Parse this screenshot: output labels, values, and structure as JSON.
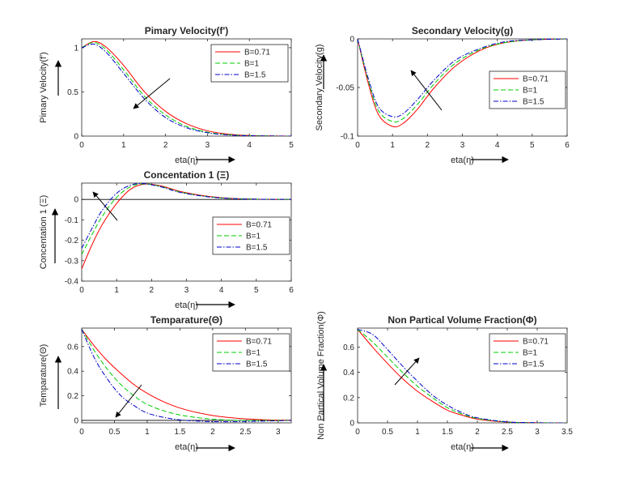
{
  "chart_data": [
    {
      "type": "line",
      "title": "Pimary Velocity(f')",
      "xlabel": "eta(η)",
      "ylabel": "Pimary Velocity(f')",
      "xlim": [
        0,
        5
      ],
      "ylim": [
        0,
        1.1
      ],
      "xticks": [
        "0",
        "1",
        "2",
        "3",
        "4",
        "5"
      ],
      "yticks": [
        "0",
        "0.5",
        "1"
      ],
      "legend_position": "top-right",
      "arrow_direction": "down-left",
      "series": [
        {
          "name": "B=0.71",
          "color": "#ff0000",
          "dash": "solid",
          "x": [
            0,
            0.3,
            0.6,
            1.0,
            1.5,
            2.0,
            2.5,
            3.0,
            3.5,
            4.0,
            4.5,
            5.0
          ],
          "y": [
            1.0,
            1.07,
            1.0,
            0.8,
            0.5,
            0.28,
            0.14,
            0.06,
            0.022,
            0.007,
            0.002,
            0
          ]
        },
        {
          "name": "B=1",
          "color": "#00cc00",
          "dash": "dashed",
          "x": [
            0,
            0.3,
            0.6,
            1.0,
            1.5,
            2.0,
            2.5,
            3.0,
            3.5,
            4.0,
            4.5,
            5.0
          ],
          "y": [
            1.0,
            1.06,
            0.97,
            0.75,
            0.45,
            0.24,
            0.11,
            0.045,
            0.016,
            0.005,
            0.001,
            0
          ]
        },
        {
          "name": "B=1.5",
          "color": "#0000cc",
          "dash": "dashdot",
          "x": [
            0,
            0.3,
            0.6,
            1.0,
            1.5,
            2.0,
            2.5,
            3.0,
            3.5,
            4.0,
            4.5,
            5.0
          ],
          "y": [
            1.0,
            1.04,
            0.94,
            0.71,
            0.42,
            0.21,
            0.095,
            0.038,
            0.013,
            0.004,
            0.001,
            0
          ]
        }
      ]
    },
    {
      "type": "line",
      "title": "Secondary Velocity(g)",
      "xlabel": "eta(η)",
      "ylabel": "Secondary Velocity(g)",
      "xlim": [
        0,
        6
      ],
      "ylim": [
        -0.1,
        0
      ],
      "xticks": [
        "0",
        "1",
        "2",
        "3",
        "4",
        "5",
        "6"
      ],
      "yticks": [
        "-0.1",
        "-0.05",
        "0"
      ],
      "legend_position": "right",
      "arrow_direction": "up-left",
      "series": [
        {
          "name": "B=0.71",
          "color": "#ff0000",
          "dash": "solid",
          "x": [
            0,
            0.3,
            0.6,
            1.0,
            1.3,
            1.7,
            2.2,
            2.8,
            3.5,
            4.2,
            5.0,
            6.0
          ],
          "y": [
            0,
            -0.045,
            -0.078,
            -0.09,
            -0.087,
            -0.073,
            -0.05,
            -0.028,
            -0.012,
            -0.004,
            -0.001,
            0
          ]
        },
        {
          "name": "B=1",
          "color": "#00cc00",
          "dash": "dashed",
          "x": [
            0,
            0.3,
            0.6,
            1.0,
            1.3,
            1.7,
            2.2,
            2.8,
            3.5,
            4.2,
            5.0,
            6.0
          ],
          "y": [
            0,
            -0.042,
            -0.074,
            -0.085,
            -0.082,
            -0.068,
            -0.046,
            -0.025,
            -0.011,
            -0.004,
            -0.001,
            0
          ]
        },
        {
          "name": "B=1.5",
          "color": "#0000cc",
          "dash": "dashdot",
          "x": [
            0,
            0.3,
            0.6,
            1.0,
            1.3,
            1.7,
            2.2,
            2.8,
            3.5,
            4.2,
            5.0,
            6.0
          ],
          "y": [
            0,
            -0.04,
            -0.07,
            -0.08,
            -0.077,
            -0.063,
            -0.042,
            -0.022,
            -0.01,
            -0.003,
            -0.001,
            0
          ]
        }
      ]
    },
    {
      "type": "line",
      "title": "Concentation 1 (Ξ)",
      "xlabel": "eta(η)",
      "ylabel": "Concentation 1 (Ξ)",
      "xlim": [
        0,
        6
      ],
      "ylim": [
        -0.4,
        0.08
      ],
      "xticks": [
        "0",
        "1",
        "2",
        "3",
        "4",
        "5",
        "6"
      ],
      "yticks": [
        "-0.4",
        "-0.3",
        "-0.2",
        "-0.1",
        "0"
      ],
      "legend_position": "right",
      "arrow_direction": "up-left",
      "series": [
        {
          "name": "B=0.71",
          "color": "#ff0000",
          "dash": "solid",
          "x": [
            0,
            0.3,
            0.6,
            1.0,
            1.4,
            1.8,
            2.3,
            2.8,
            3.5,
            4.2,
            5.0,
            6.0
          ],
          "y": [
            -0.34,
            -0.22,
            -0.12,
            -0.02,
            0.05,
            0.075,
            0.065,
            0.04,
            0.018,
            0.006,
            0.001,
            0
          ]
        },
        {
          "name": "B=1",
          "color": "#00cc00",
          "dash": "dashed",
          "x": [
            0,
            0.3,
            0.6,
            1.0,
            1.4,
            1.8,
            2.3,
            2.8,
            3.5,
            4.2,
            5.0,
            6.0
          ],
          "y": [
            -0.27,
            -0.17,
            -0.08,
            0.01,
            0.062,
            0.076,
            0.062,
            0.037,
            0.016,
            0.005,
            0.001,
            0
          ]
        },
        {
          "name": "B=1.5",
          "color": "#0000cc",
          "dash": "dashdot",
          "x": [
            0,
            0.3,
            0.6,
            1.0,
            1.4,
            1.8,
            2.3,
            2.8,
            3.5,
            4.2,
            5.0,
            6.0
          ],
          "y": [
            -0.24,
            -0.14,
            -0.05,
            0.03,
            0.07,
            0.077,
            0.06,
            0.035,
            0.015,
            0.005,
            0.001,
            0
          ]
        }
      ]
    },
    {
      "type": "line",
      "title": "Temparature(Θ)",
      "xlabel": "eta(η)",
      "ylabel": "Temparature(Θ)",
      "xlim": [
        0,
        3.2
      ],
      "ylim": [
        -0.02,
        0.75
      ],
      "xticks": [
        "0",
        "0.5",
        "1",
        "1.5",
        "2",
        "2.5",
        "3"
      ],
      "xtick_values": [
        0,
        0.5,
        1,
        1.5,
        2,
        2.5,
        3
      ],
      "yticks": [
        "0",
        "0.2",
        "0.4",
        "0.6"
      ],
      "ytick_values": [
        0,
        0.2,
        0.4,
        0.6
      ],
      "legend_position": "top-right",
      "arrow_direction": "down-left",
      "series": [
        {
          "name": "B=0.71",
          "color": "#ff0000",
          "dash": "solid",
          "x": [
            0,
            0.2,
            0.4,
            0.6,
            0.8,
            1.0,
            1.3,
            1.6,
            2.0,
            2.4,
            2.8,
            3.2
          ],
          "y": [
            0.74,
            0.6,
            0.48,
            0.38,
            0.29,
            0.22,
            0.14,
            0.085,
            0.04,
            0.016,
            0.005,
            0.002
          ]
        },
        {
          "name": "B=1",
          "color": "#00cc00",
          "dash": "dashed",
          "x": [
            0,
            0.2,
            0.4,
            0.6,
            0.8,
            1.0,
            1.3,
            1.6,
            2.0,
            2.4,
            2.8,
            3.2
          ],
          "y": [
            0.74,
            0.56,
            0.41,
            0.29,
            0.2,
            0.13,
            0.07,
            0.035,
            0.01,
            0.0,
            0.0,
            0.0
          ]
        },
        {
          "name": "B=1.5",
          "color": "#0000cc",
          "dash": "dashdot",
          "x": [
            0,
            0.2,
            0.4,
            0.6,
            0.8,
            1.0,
            1.3,
            1.6,
            2.0,
            2.4,
            2.8,
            3.2
          ],
          "y": [
            0.74,
            0.5,
            0.33,
            0.2,
            0.12,
            0.06,
            0.02,
            0.0,
            -0.01,
            -0.01,
            -0.005,
            0.0
          ]
        }
      ]
    },
    {
      "type": "line",
      "title": "Non Partical Volume Fraction(Φ)",
      "xlabel": "eta(η)",
      "ylabel": "Non Partical Volume Fraction(Φ)",
      "xlim": [
        0,
        3.5
      ],
      "ylim": [
        0,
        0.75
      ],
      "xticks": [
        "0",
        "0.5",
        "1",
        "1.5",
        "2",
        "2.5",
        "3",
        "3.5"
      ],
      "xtick_values": [
        0,
        0.5,
        1,
        1.5,
        2,
        2.5,
        3,
        3.5
      ],
      "yticks": [
        "0",
        "0.2",
        "0.4",
        "0.6"
      ],
      "ytick_values": [
        0,
        0.2,
        0.4,
        0.6
      ],
      "legend_position": "top-right",
      "arrow_direction": "up-right",
      "series": [
        {
          "name": "B=0.71",
          "color": "#ff0000",
          "dash": "solid",
          "x": [
            0,
            0.25,
            0.5,
            0.75,
            1.0,
            1.25,
            1.5,
            1.75,
            2.0,
            2.5,
            3.0,
            3.5
          ],
          "y": [
            0.74,
            0.6,
            0.47,
            0.35,
            0.25,
            0.17,
            0.1,
            0.06,
            0.03,
            0.006,
            0.001,
            0
          ]
        },
        {
          "name": "B=1",
          "color": "#00cc00",
          "dash": "dashed",
          "x": [
            0,
            0.25,
            0.5,
            0.75,
            1.0,
            1.25,
            1.5,
            1.75,
            2.0,
            2.5,
            3.0,
            3.5
          ],
          "y": [
            0.74,
            0.64,
            0.52,
            0.4,
            0.29,
            0.2,
            0.12,
            0.07,
            0.035,
            0.007,
            0.001,
            0
          ]
        },
        {
          "name": "B=1.5",
          "color": "#0000cc",
          "dash": "dashdot",
          "x": [
            0,
            0.25,
            0.5,
            0.75,
            1.0,
            1.25,
            1.5,
            1.75,
            2.0,
            2.5,
            3.0,
            3.5
          ],
          "y": [
            0.74,
            0.7,
            0.58,
            0.45,
            0.33,
            0.22,
            0.14,
            0.08,
            0.04,
            0.008,
            0.001,
            0
          ]
        }
      ]
    }
  ]
}
